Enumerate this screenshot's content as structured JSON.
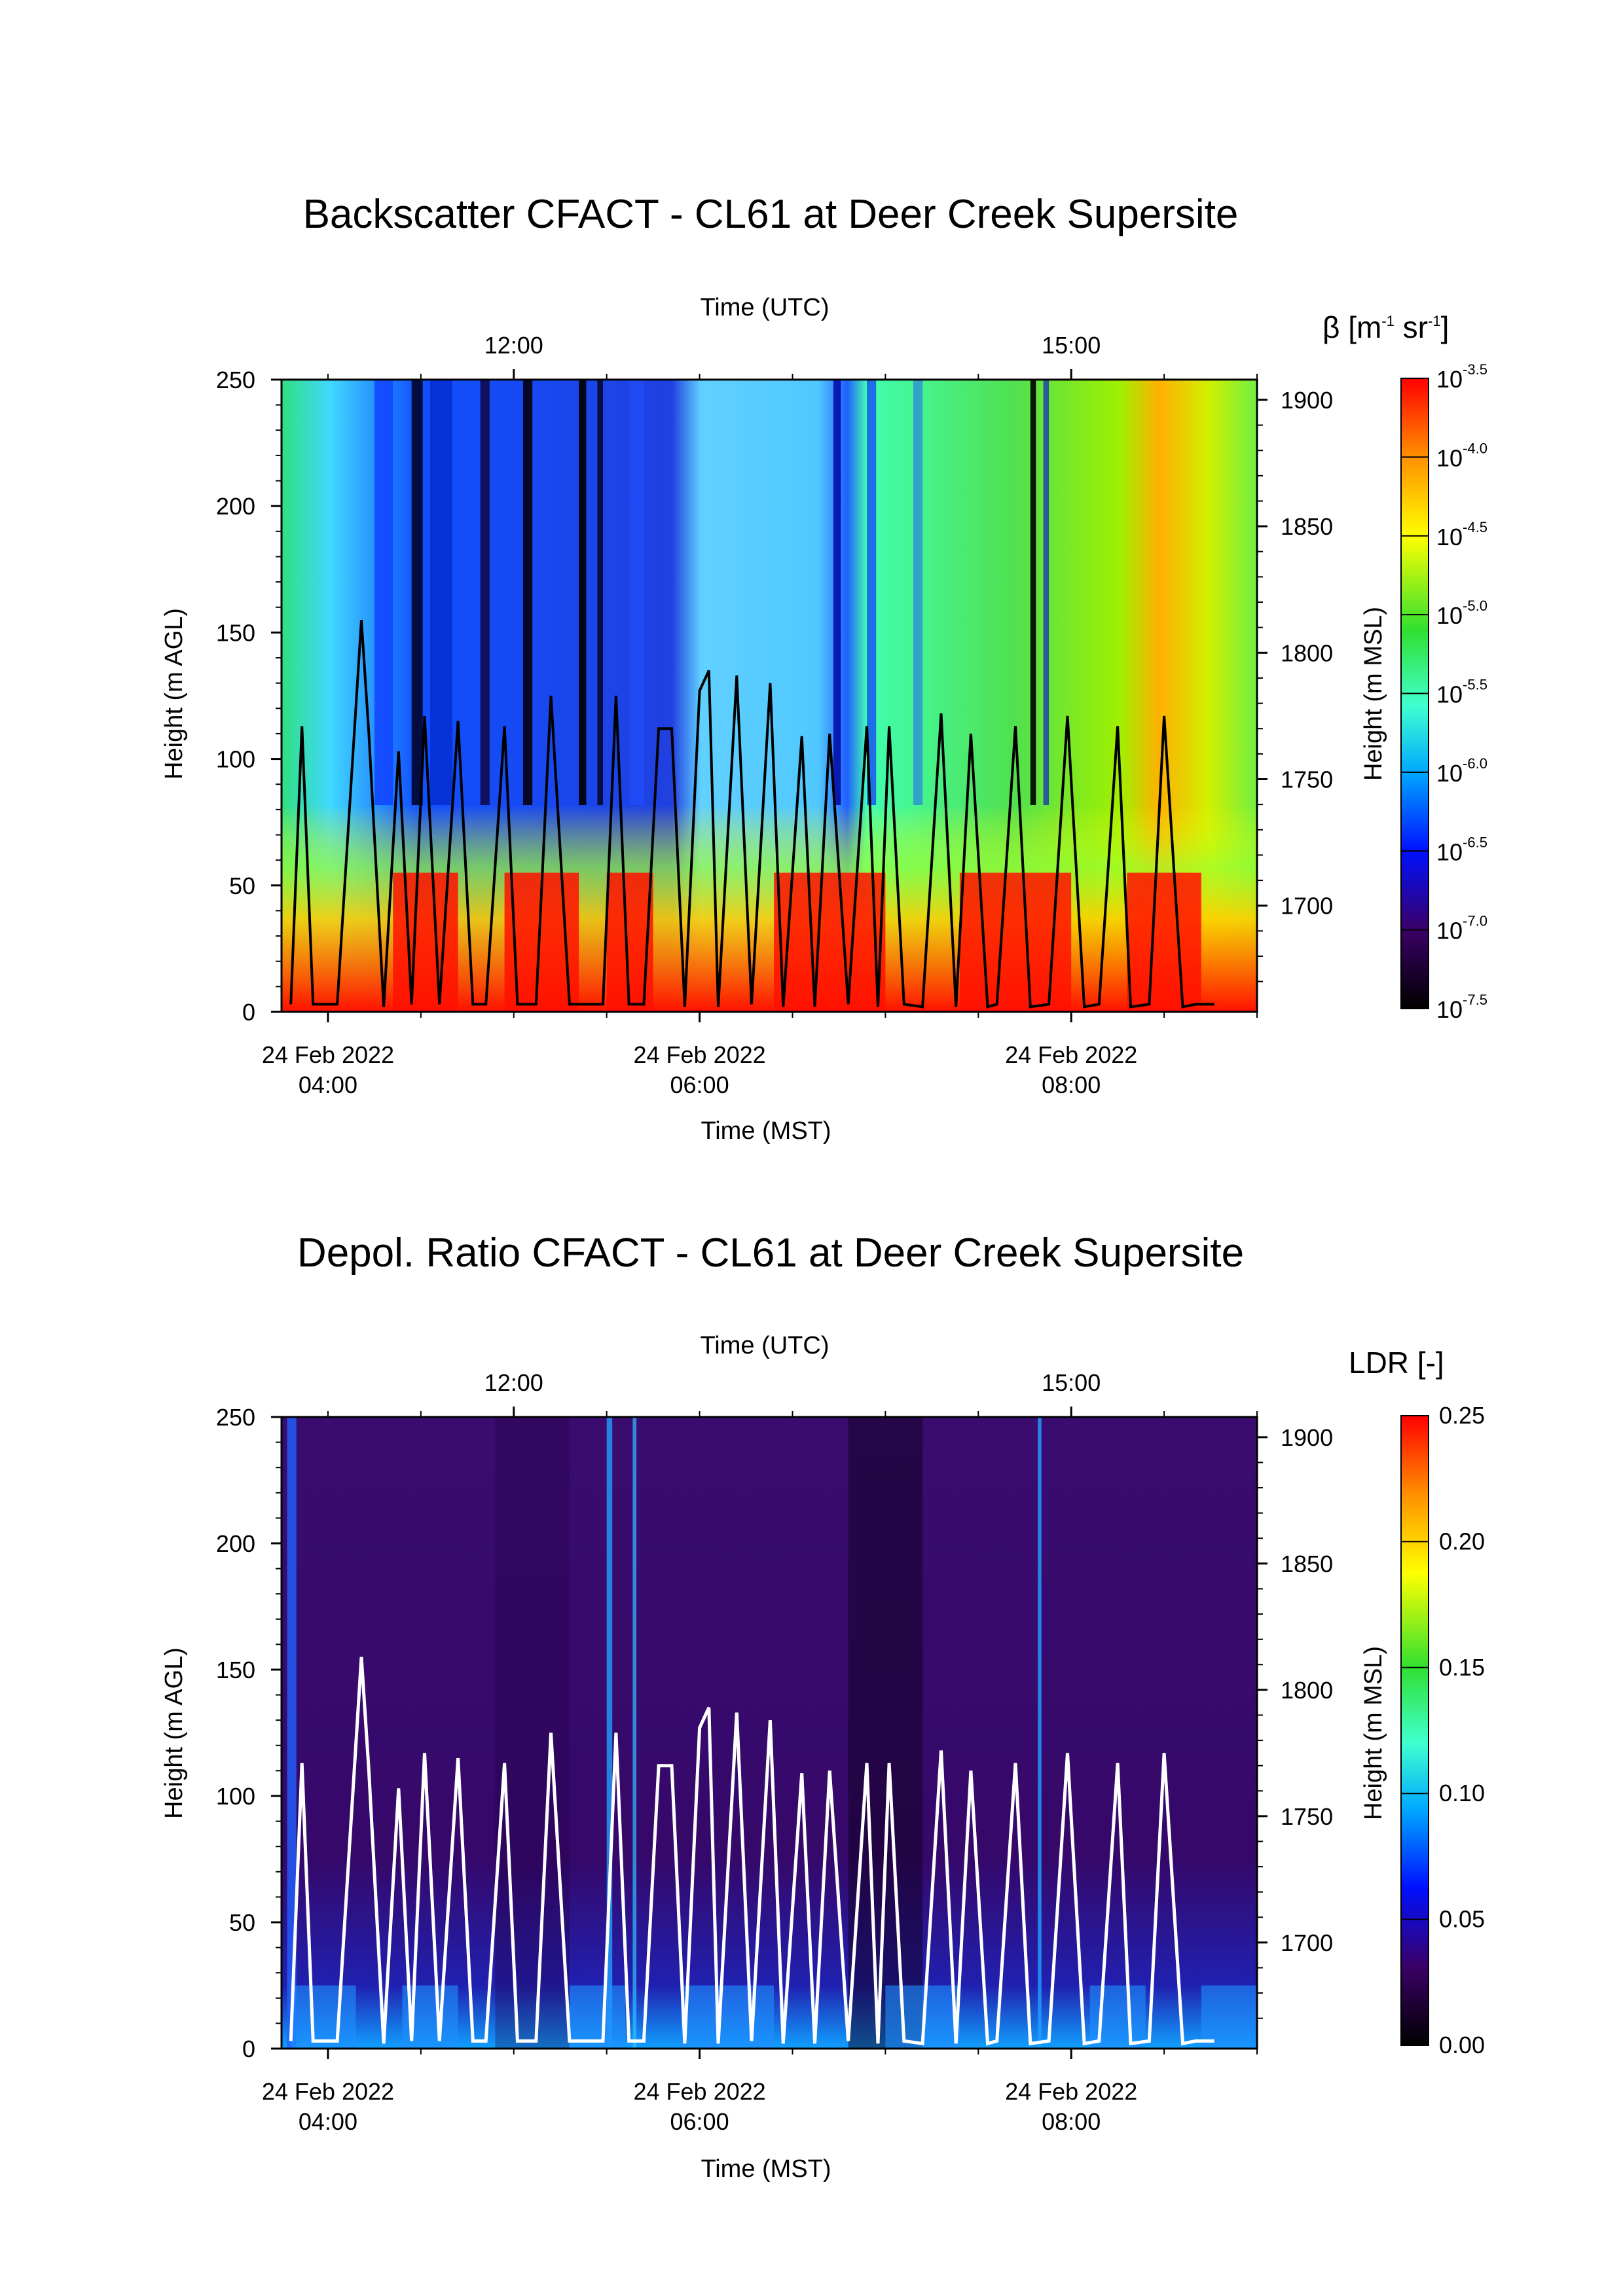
{
  "chart_data": [
    {
      "type": "heatmap",
      "title": "Backscatter CFACT - CL61 at Deer Creek Supersite",
      "xlabel": "Time (MST)",
      "x2label": "Time (UTC)",
      "ylabel": "Height (m AGL)",
      "y2label": "Height (m MSL)",
      "x_ticks": [
        {
          "value": "04:00",
          "label_top": "24 Feb 2022",
          "label_bottom": "04:00"
        },
        {
          "value": "06:00",
          "label_top": "24 Feb 2022",
          "label_bottom": "06:00"
        },
        {
          "value": "08:00",
          "label_top": "24 Feb 2022",
          "label_bottom": "08:00"
        }
      ],
      "x2_ticks": [
        "12:00",
        "15:00"
      ],
      "y_ticks": [
        0,
        50,
        100,
        150,
        200,
        250
      ],
      "y2_ticks": [
        1700,
        1750,
        1800,
        1850,
        1900
      ],
      "xlim_hours_mst": [
        3.75,
        9.0
      ],
      "ylim": [
        0,
        250
      ],
      "colorbar": {
        "label": "β [m-1 sr-1]",
        "label_parts": [
          "β [m",
          "-1",
          " sr",
          "-1",
          "]"
        ],
        "scale": "log",
        "base": "10",
        "exponents": [
          "-3.5",
          "-4.0",
          "-4.5",
          "-5.0",
          "-5.5",
          "-6.0",
          "-6.5",
          "-7.0",
          "-7.5"
        ],
        "range": [
          "1e-7.5",
          "1e-3.5"
        ],
        "colormap": [
          "#000000",
          "#3a0066",
          "#0010ff",
          "#00a8ff",
          "#40ffd0",
          "#30e030",
          "#ffff00",
          "#ff9000",
          "#ff0000"
        ]
      },
      "overlay_line": {
        "color": "#000000",
        "description_values": "flight altitude AGL, sawtooth",
        "x_hours_mst": [
          3.8,
          3.86,
          3.92,
          4.0,
          4.05,
          4.18,
          4.22,
          4.3,
          4.38,
          4.45,
          4.52,
          4.6,
          4.7,
          4.78,
          4.85,
          4.95,
          5.02,
          5.12,
          5.2,
          5.3,
          5.4,
          5.48,
          5.55,
          5.62,
          5.7,
          5.78,
          5.85,
          5.92,
          6.0,
          6.05,
          6.1,
          6.2,
          6.28,
          6.38,
          6.45,
          6.55,
          6.62,
          6.7,
          6.8,
          6.9,
          6.96,
          7.02,
          7.1,
          7.2,
          7.3,
          7.38,
          7.46,
          7.55,
          7.6,
          7.7,
          7.78,
          7.88,
          7.98,
          8.07,
          8.15,
          8.25,
          8.32,
          8.42,
          8.5,
          8.6,
          8.67,
          8.77
        ],
        "y_m_agl": [
          3,
          113,
          3,
          3,
          3,
          155,
          110,
          2,
          103,
          3,
          117,
          3,
          115,
          3,
          3,
          113,
          3,
          3,
          125,
          3,
          3,
          3,
          125,
          3,
          3,
          112,
          112,
          2,
          127,
          135,
          2,
          133,
          3,
          130,
          2,
          109,
          2,
          110,
          3,
          113,
          2,
          113,
          3,
          2,
          118,
          2,
          110,
          2,
          3,
          113,
          2,
          3,
          117,
          2,
          3,
          113,
          2,
          3,
          117,
          2,
          3,
          3
        ]
      }
    },
    {
      "type": "heatmap",
      "title": "Depol. Ratio CFACT - CL61 at Deer Creek Supersite",
      "xlabel": "Time (MST)",
      "x2label": "Time (UTC)",
      "ylabel": "Height (m AGL)",
      "y2label": "Height (m MSL)",
      "x_ticks": [
        {
          "value": "04:00",
          "label_top": "24 Feb 2022",
          "label_bottom": "04:00"
        },
        {
          "value": "06:00",
          "label_top": "24 Feb 2022",
          "label_bottom": "06:00"
        },
        {
          "value": "08:00",
          "label_top": "24 Feb 2022",
          "label_bottom": "08:00"
        }
      ],
      "x2_ticks": [
        "12:00",
        "15:00"
      ],
      "y_ticks": [
        0,
        50,
        100,
        150,
        200,
        250
      ],
      "y2_ticks": [
        1700,
        1750,
        1800,
        1850,
        1900
      ],
      "xlim_hours_mst": [
        3.75,
        9.0
      ],
      "ylim": [
        0,
        250
      ],
      "colorbar": {
        "label": "LDR [-]",
        "scale": "linear",
        "ticks": [
          "0.25",
          "0.20",
          "0.15",
          "0.10",
          "0.05",
          "0.00"
        ],
        "range": [
          0.0,
          0.25
        ],
        "colormap": [
          "#000000",
          "#3a0066",
          "#0010ff",
          "#00a8ff",
          "#40ffd0",
          "#30e030",
          "#ffff00",
          "#ff9000",
          "#ff0000"
        ]
      },
      "overlay_line": {
        "color": "#ffffff",
        "description_values": "flight altitude AGL, sawtooth (same as above)"
      }
    }
  ]
}
